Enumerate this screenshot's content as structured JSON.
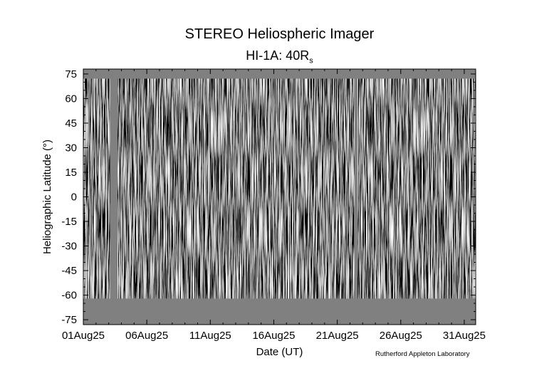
{
  "chart_data": {
    "type": "heatmap",
    "title": "STEREO Heliospheric Imager",
    "subtitle": {
      "main": "HI-1A: 40R",
      "sub": "s"
    },
    "xlabel": "Date (UT)",
    "ylabel": "Heliographic Latitude (°)",
    "credit": "Rutherford Appleton Laboratory",
    "x_ticks": [
      "01Aug25",
      "06Aug25",
      "11Aug25",
      "16Aug25",
      "21Aug25",
      "26Aug25",
      "31Aug25"
    ],
    "x_tick_days": [
      1,
      6,
      11,
      16,
      21,
      26,
      31
    ],
    "xlim": [
      1,
      31.9
    ],
    "y_ticks": [
      75,
      60,
      45,
      30,
      15,
      0,
      -15,
      -30,
      -45,
      -60,
      -75
    ],
    "ylim": [
      -78,
      78
    ],
    "data_gaps_days": [
      [
        3.1,
        3.7
      ],
      [
        22.35,
        22.6
      ]
    ],
    "valid_latitude_range": [
      -62,
      72
    ],
    "colormap": "grayscale",
    "gap_color": "#808080"
  }
}
